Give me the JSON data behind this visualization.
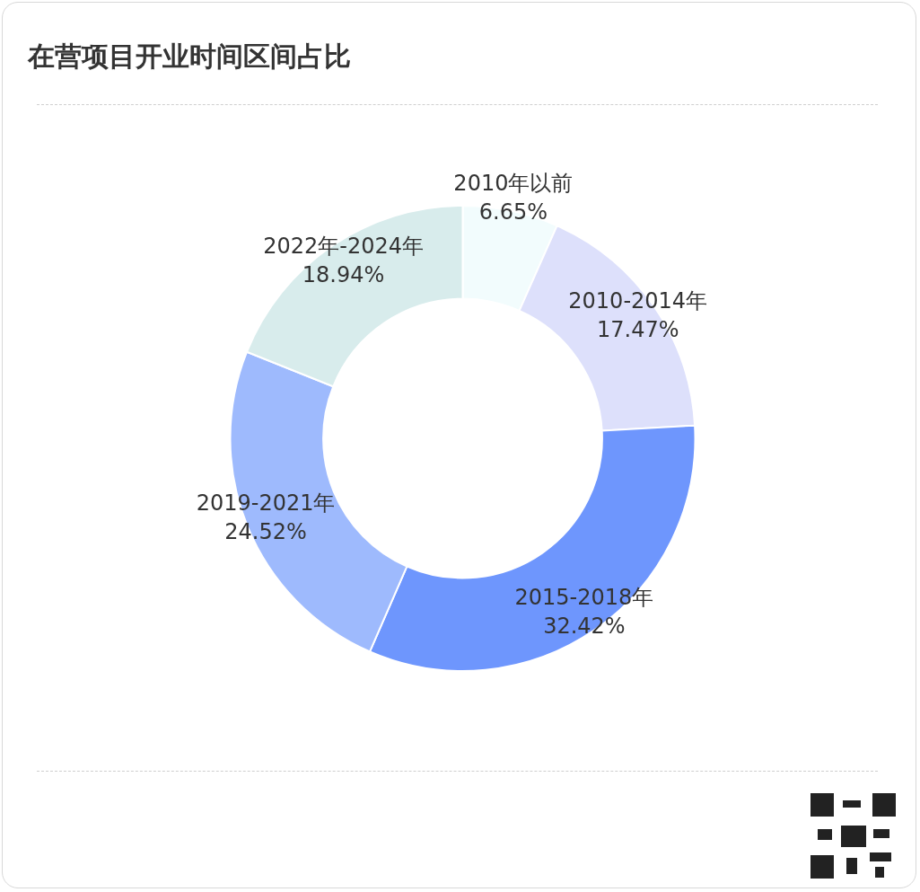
{
  "chart_data": {
    "type": "donut",
    "title": "在营项目开业时间区间占比",
    "categories": [
      "2010年以前",
      "2010-2014年",
      "2015-2018年",
      "2019-2021年",
      "2022年-2024年"
    ],
    "values": [
      6.65,
      17.47,
      32.42,
      24.52,
      18.94
    ],
    "value_labels": [
      "6.65%",
      "17.47%",
      "32.42%",
      "24.52%",
      "18.94%"
    ],
    "colors": [
      "#f2fcfd",
      "#dde0fb",
      "#6e96fd",
      "#9ebafd",
      "#d8ecec"
    ],
    "legend": false
  }
}
